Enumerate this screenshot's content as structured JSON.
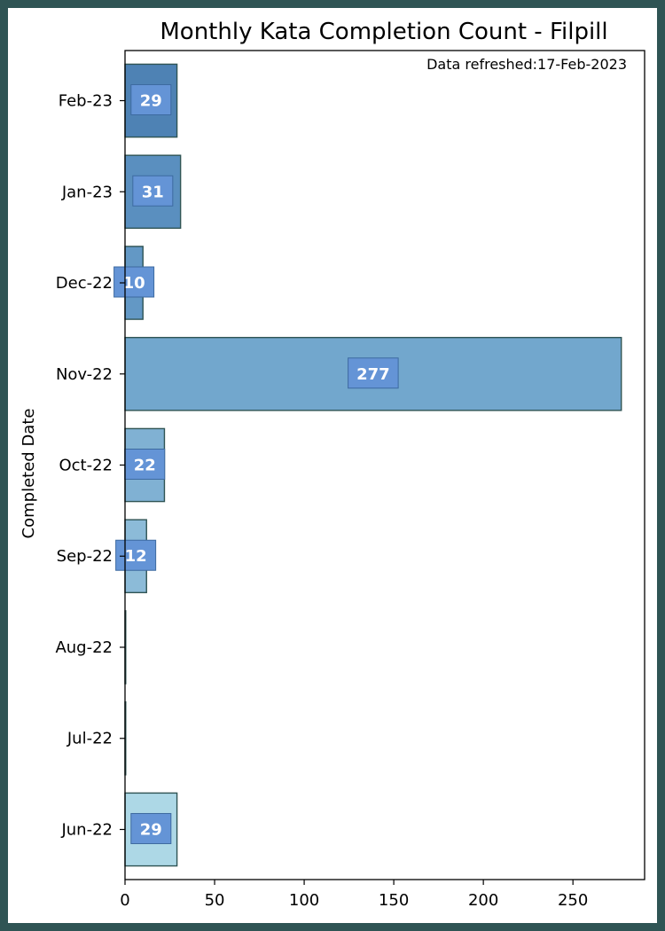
{
  "chart_data": {
    "type": "bar",
    "orientation": "horizontal",
    "title": "Monthly Kata Completion Count - Filpill",
    "annotation": "Data refreshed:17-Feb-2023",
    "xlabel": "",
    "ylabel": "Completed Date",
    "categories": [
      "Jun-22",
      "Jul-22",
      "Aug-22",
      "Sep-22",
      "Oct-22",
      "Nov-22",
      "Dec-22",
      "Jan-23",
      "Feb-23"
    ],
    "values": [
      29,
      0,
      0,
      12,
      22,
      277,
      10,
      31,
      29
    ],
    "bar_colors": [
      "#add8e6",
      "#a3cfe2",
      "#98c6de",
      "#8cbbd8",
      "#80b1d3",
      "#72a7cd",
      "#6398c5",
      "#5a8fbf",
      "#4e82b4"
    ],
    "bar_edge_color": "#2f5454",
    "label_box_color": "#6494d6",
    "xlim": [
      0,
      290
    ],
    "xticks": [
      0,
      50,
      100,
      150,
      200,
      250
    ],
    "grid": false,
    "legend": "none"
  }
}
